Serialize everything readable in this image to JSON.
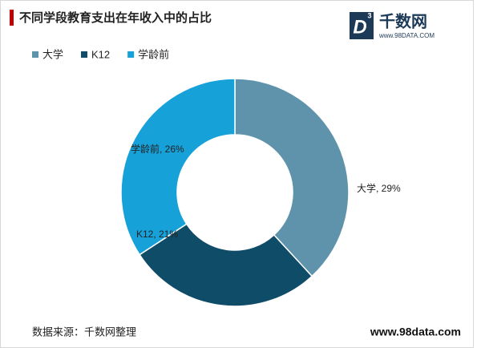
{
  "chart_data": {
    "type": "donut",
    "title": "不同学段教育支出在年收入中的占比",
    "categories": [
      "大学",
      "K12",
      "学龄前"
    ],
    "values": [
      29,
      21,
      26
    ],
    "value_labels": [
      "大学, 29%",
      "K12, 21%",
      "学龄前, 26%"
    ],
    "colors": [
      "#5e93ab",
      "#0f4c68",
      "#16a1d9"
    ],
    "legend": "top-left"
  },
  "logo": {
    "mark": "D",
    "sup": "3",
    "name": "千数网",
    "url": "www.98DATA.COM"
  },
  "footer": {
    "source": "数据来源：千数网整理",
    "site": "www.98data.com"
  }
}
